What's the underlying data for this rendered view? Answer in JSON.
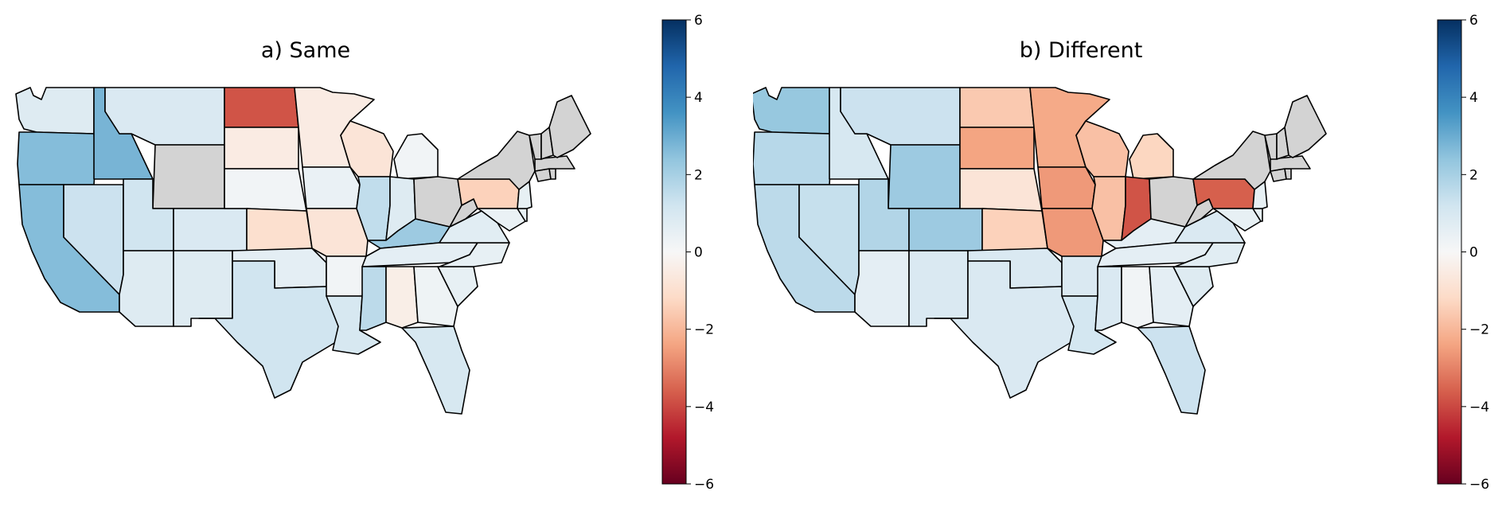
{
  "colormap": {
    "name": "RdBu",
    "range": [
      -6,
      6
    ],
    "nan_color": "#d3d3d3",
    "stops": [
      "#67001f",
      "#b2182b",
      "#d6604d",
      "#f4a582",
      "#fddbc7",
      "#f7f7f7",
      "#d1e5f0",
      "#92c5de",
      "#4393c3",
      "#2166ac",
      "#053061"
    ]
  },
  "colorbar_ticks": [
    "6",
    "4",
    "2",
    "0",
    "−2",
    "−4",
    "−6"
  ],
  "colorbar_tick_values": [
    6,
    4,
    2,
    0,
    -2,
    -4,
    -6
  ],
  "panels": [
    {
      "title": "a) Same",
      "states": {
        "WA": 0.8,
        "OR": 2.6,
        "ID": 2.8,
        "MT": 0.9,
        "WY": null,
        "CA": 2.6,
        "NV": 1.3,
        "UT": 1.2,
        "CO": 0.9,
        "AZ": 0.8,
        "NM": 0.8,
        "ND": -3.8,
        "SD": -0.5,
        "NE": 0.2,
        "KS": -1.0,
        "OK": 0.6,
        "TX": 1.2,
        "MN": -0.5,
        "IA": 0.4,
        "MO": -0.8,
        "AR": 0.2,
        "LA": 1.0,
        "WI": -0.8,
        "IL": 1.5,
        "MI": 0.2,
        "IN": 0.8,
        "OH": null,
        "KY": 2.2,
        "TN": 0.6,
        "MS": 1.6,
        "AL": -0.4,
        "GA": 0.3,
        "FL": 1.0,
        "SC": 0.5,
        "NC": 0.5,
        "VA": 0.7,
        "WV": null,
        "PA": -1.4,
        "NY": null,
        "MD": 0.4,
        "DE": 0.5,
        "NJ": 0.5,
        "CT": null,
        "RI": null,
        "MA": null,
        "VT": null,
        "NH": null,
        "ME": null
      }
    },
    {
      "title": "b) Different",
      "states": {
        "WA": 2.3,
        "OR": 1.7,
        "ID": 1.0,
        "MT": 1.3,
        "WY": 2.2,
        "CA": 1.6,
        "NV": 1.4,
        "UT": 1.8,
        "CO": 2.2,
        "AZ": 0.6,
        "NM": 0.9,
        "ND": -1.6,
        "SD": -2.4,
        "NE": -0.8,
        "KS": -1.4,
        "OK": 0.9,
        "TX": 0.9,
        "MN": -2.3,
        "IA": -2.6,
        "MO": -2.6,
        "AR": 0.9,
        "LA": 1.1,
        "WI": -1.8,
        "IL": -1.8,
        "MI": -1.3,
        "IN": -3.8,
        "OH": null,
        "KY": 0.6,
        "TN": 0.6,
        "MS": 0.9,
        "AL": 0.2,
        "GA": 0.6,
        "FL": 1.3,
        "SC": 0.8,
        "NC": 0.7,
        "VA": 0.9,
        "WV": null,
        "PA": -3.6,
        "NY": null,
        "MD": 0.5,
        "DE": 0.5,
        "NJ": 0.5,
        "CT": null,
        "RI": null,
        "MA": null,
        "VT": null,
        "NH": null,
        "ME": null
      }
    }
  ]
}
